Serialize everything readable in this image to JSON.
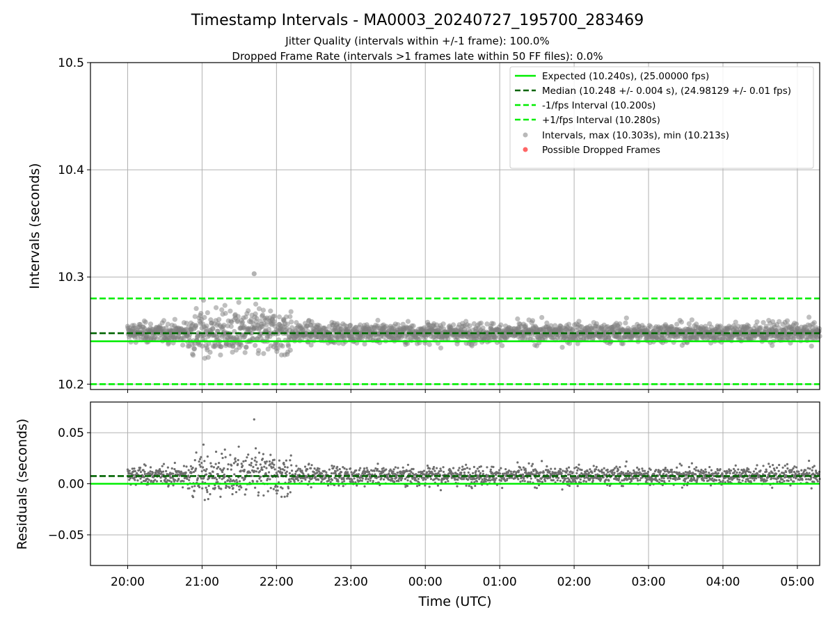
{
  "figure": {
    "title": "Timestamp Intervals - MA0003_20240727_195700_283469",
    "subtitle_1": "Jitter Quality (intervals within +/-1 frame): 100.0%",
    "subtitle_2": "Dropped Frame Rate (intervals >1 frames late within 50 FF files): 0.0%"
  },
  "chart_data": [
    {
      "type": "scatter",
      "panel": "intervals",
      "xlabel": "",
      "ylabel": "Intervals (seconds)",
      "x_unit": "hours since 20:00 UTC (2024-07-27)",
      "xlim": [
        -0.5,
        9.3
      ],
      "ylim": [
        10.195,
        10.5
      ],
      "yticks": [
        10.2,
        10.3,
        10.4,
        10.5
      ],
      "ytick_labels": [
        "10.2",
        "10.3",
        "10.4",
        "10.5"
      ],
      "grid": true,
      "legend_position": "top-right",
      "reference_lines": [
        {
          "name": "Expected (10.240s), (25.00000 fps)",
          "y": 10.24,
          "color": "#00ee00",
          "style": "solid"
        },
        {
          "name": "Median (10.248 +/- 0.004 s), (24.98129 +/- 0.01 fps)",
          "y": 10.2475,
          "color": "#006400",
          "style": "dashed"
        },
        {
          "name": "-1/fps Interval (10.200s)",
          "y": 10.2,
          "color": "#00ee00",
          "style": "dashed"
        },
        {
          "name": "+1/fps Interval (10.280s)",
          "y": 10.28,
          "color": "#00ee00",
          "style": "dashed"
        }
      ],
      "series": [
        {
          "name": "Intervals, max (10.303s), min (10.213s)",
          "color": "#808080",
          "summary": {
            "x_range": [
              0,
              9.3
            ],
            "median": 10.248,
            "max": 10.303,
            "min": 10.213
          }
        },
        {
          "name": "Possible Dropped Frames",
          "color": "#ff6666",
          "values": []
        }
      ]
    },
    {
      "type": "scatter",
      "panel": "residuals",
      "xlabel": "Time (UTC)",
      "ylabel": "Residuals (seconds)",
      "x_unit": "hours since 20:00 UTC (2024-07-27)",
      "xlim": [
        -0.5,
        9.3
      ],
      "ylim": [
        -0.08,
        0.08
      ],
      "yticks": [
        -0.05,
        0.0,
        0.05
      ],
      "ytick_labels": [
        "−0.05",
        "0.00",
        "0.05"
      ],
      "xticks": [
        0,
        1,
        2,
        3,
        4,
        5,
        6,
        7,
        8,
        9
      ],
      "xtick_labels": [
        "20:00",
        "21:00",
        "22:00",
        "23:00",
        "00:00",
        "01:00",
        "02:00",
        "03:00",
        "04:00",
        "05:00"
      ],
      "grid": true,
      "reference_lines": [
        {
          "y": 0.0,
          "color": "#00ee00",
          "style": "solid"
        },
        {
          "y": 0.0075,
          "color": "#006400",
          "style": "dashed"
        }
      ],
      "series": [
        {
          "color": "#808080",
          "summary": {
            "median": 0.008,
            "max": 0.063,
            "min": -0.027
          }
        }
      ]
    }
  ]
}
